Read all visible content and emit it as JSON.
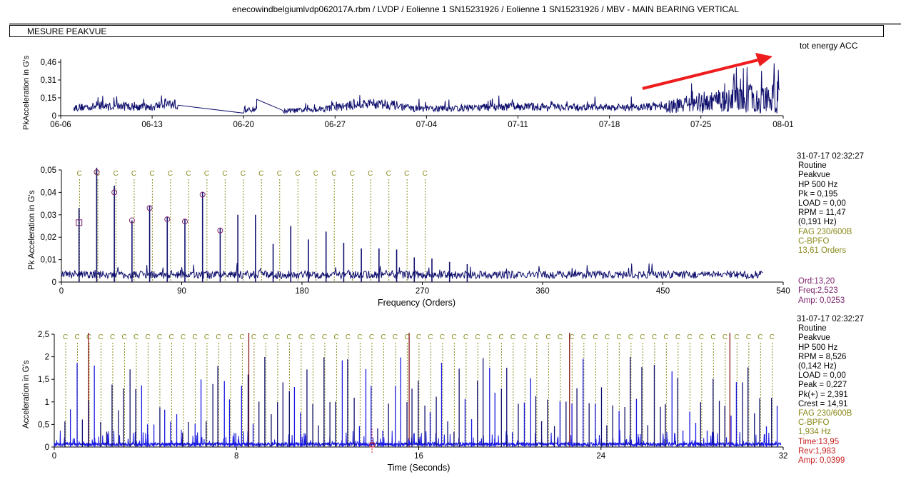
{
  "header": {
    "title": "enecowindbelgiumlvdp062017A.rbm / LVDP / Eolienne 1  SN15231926 / Eolienne 1  SN15231926 / MBV -  MAIN BEARING VERTICAL",
    "section_label": "MESURE PEAKVUE"
  },
  "colors": {
    "trace": "#10106e",
    "waveform": "#1a1ae0",
    "fault_marker": "#8a8a1c",
    "cursor_spectrum": "#7a1f6a",
    "cursor_time": "#c81e1e",
    "annotation_arrow": "#ee1c1c"
  },
  "chart_data": [
    {
      "type": "line",
      "legend": "tot energy ACC",
      "ylabel": "PkAcceleration in G's",
      "yticks": [
        "0",
        "0,15",
        "0,31",
        "0,46"
      ],
      "ylim": [
        0,
        0.46
      ],
      "xticks": [
        "06-06",
        "06-13",
        "06-20",
        "06-27",
        "07-04",
        "07-11",
        "07-18",
        "07-25",
        "08-01"
      ],
      "xlim": [
        "06-06",
        "08-01"
      ],
      "trend": [
        {
          "date": "06-07",
          "value": 0.07
        },
        {
          "date": "06-09",
          "value": 0.08
        },
        {
          "date": "06-11",
          "value": 0.08
        },
        {
          "date": "06-13",
          "value": 0.07
        },
        {
          "date": "06-14",
          "value": 0.11
        },
        {
          "date": "06-15",
          "value": 0.09
        },
        {
          "date": "06-20",
          "value": 0.04
        },
        {
          "date": "06-21",
          "value": 0.06
        },
        {
          "date": "06-21",
          "value": 0.14
        },
        {
          "date": "06-23",
          "value": 0.04
        },
        {
          "date": "06-25",
          "value": 0.05
        },
        {
          "date": "06-27",
          "value": 0.07
        },
        {
          "date": "06-29",
          "value": 0.1
        },
        {
          "date": "07-01",
          "value": 0.1
        },
        {
          "date": "07-03",
          "value": 0.06
        },
        {
          "date": "07-05",
          "value": 0.06
        },
        {
          "date": "07-08",
          "value": 0.07
        },
        {
          "date": "07-11",
          "value": 0.08
        },
        {
          "date": "07-15",
          "value": 0.07
        },
        {
          "date": "07-19",
          "value": 0.07
        },
        {
          "date": "07-22",
          "value": 0.08
        },
        {
          "date": "07-25",
          "value": 0.14
        },
        {
          "date": "07-28",
          "value": 0.18
        },
        {
          "date": "07-31",
          "value": 0.22
        }
      ],
      "annotation": "increasing-trend-arrow"
    },
    {
      "type": "line",
      "xlabel": "Frequency (Orders)",
      "ylabel": "Pk Acceleration in G's",
      "xticks": [
        "0",
        "90",
        "180",
        "270",
        "360",
        "450",
        "540"
      ],
      "xlim": [
        0,
        540
      ],
      "yticks": [
        "0",
        "0,01",
        "0,02",
        "0,03",
        "0,04",
        "0,05"
      ],
      "ylim": [
        0,
        0.05
      ],
      "harmonic_spacing_orders": 13.2,
      "peaks": [
        0.033,
        0.051,
        0.043,
        0.0275,
        0.034,
        0.029,
        0.028,
        0.04,
        0.024,
        0.03,
        0.03,
        0.017,
        0.025,
        0.019,
        0.0225,
        0.0175,
        0.015,
        0.015,
        0.0145,
        0.011,
        0.0105,
        0.009,
        0.008
      ],
      "marked_peaks": [
        0.0265,
        0.049,
        0.04,
        0.0275,
        0.033,
        0.028,
        0.027,
        0.039,
        0.023
      ],
      "fault_marker": {
        "label": "C",
        "spacing_orders": 13.61,
        "count": 20
      },
      "cursor": {
        "order": 13.2
      }
    },
    {
      "type": "line",
      "xlabel": "Time (Seconds)",
      "ylabel": "Acceleration in G's",
      "xticks": [
        "0",
        "8",
        "16",
        "24",
        "32"
      ],
      "xlim": [
        0,
        32
      ],
      "yticks": [
        "0",
        "0,5",
        "1",
        "1,5",
        "2",
        "2,5"
      ],
      "ylim": [
        0,
        2.5
      ],
      "fault_marker": {
        "label": "C",
        "frequency_hz": 1.934,
        "count": 61
      },
      "rev_period_s": 7.04,
      "cursor": {
        "time": 13.95
      }
    }
  ],
  "spectrum_panel": {
    "date": "31-07-17 02:32:27",
    "lines": [
      "Routine",
      "Peakvue",
      "HP 500 Hz",
      "Pk = 0,195",
      "LOAD = 0,00",
      "RPM = 11,47",
      "(0,191 Hz)"
    ],
    "fault_lines": [
      "FAG 230/600B",
      "C-BPFO",
      "   13,61 Orders"
    ],
    "cursor_lines": [
      "Ord:13,20",
      "Freq:2,523",
      "Amp: 0,0253"
    ]
  },
  "waveform_panel": {
    "date": "31-07-17 02:32:27",
    "lines": [
      "Routine",
      "Peakvue",
      "HP 500 Hz",
      "RPM = 8,526",
      "(0,142 Hz)",
      "LOAD = 0,00",
      "Peak = 0,227",
      "Pk(+) = 2,391",
      "Crest = 14,91"
    ],
    "fault_lines": [
      "FAG 230/600B",
      "C-BPFO",
      "   1,934 Hz"
    ],
    "cursor_lines": [
      "Time:13,95",
      "Rev:1,983",
      "Amp: 0,0399"
    ]
  }
}
